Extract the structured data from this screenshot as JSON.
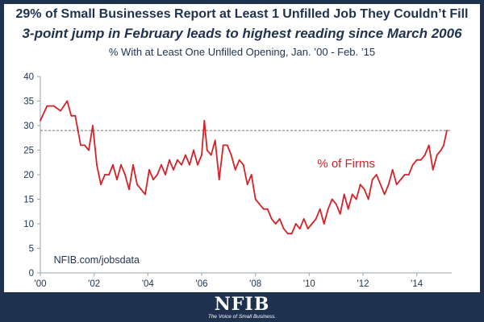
{
  "header": {
    "title": "29% of Small Businesses Report at Least 1 Unfilled Job They Couldn’t Fill",
    "subtitle": "3-point jump in February leads to highest reading since March 2006",
    "caption": "% With at Least One Unfilled Opening, Jan. ’00 - Feb. ’15"
  },
  "footer": {
    "logo_text": "NFIB",
    "tagline": "The Voice of Small Business."
  },
  "chart_data": {
    "type": "line",
    "title": "% With at Least One Unfilled Opening, Jan. ’00 - Feb. ’15",
    "series": [
      {
        "name": "% of Firms",
        "color": "#d2232a",
        "x": [
          2000.0,
          2000.25,
          2000.5,
          2000.75,
          2001.0,
          2001.15,
          2001.3,
          2001.5,
          2001.65,
          2001.8,
          2001.95,
          2002.1,
          2002.25,
          2002.4,
          2002.55,
          2002.7,
          2002.85,
          2003.0,
          2003.15,
          2003.3,
          2003.45,
          2003.6,
          2003.75,
          2003.9,
          2004.05,
          2004.2,
          2004.35,
          2004.5,
          2004.65,
          2004.8,
          2004.95,
          2005.1,
          2005.25,
          2005.4,
          2005.55,
          2005.7,
          2005.85,
          2006.0,
          2006.1,
          2006.2,
          2006.35,
          2006.5,
          2006.65,
          2006.8,
          2006.95,
          2007.1,
          2007.25,
          2007.4,
          2007.55,
          2007.7,
          2007.85,
          2008.0,
          2008.15,
          2008.3,
          2008.45,
          2008.6,
          2008.75,
          2008.9,
          2009.05,
          2009.2,
          2009.35,
          2009.5,
          2009.65,
          2009.8,
          2009.95,
          2010.1,
          2010.25,
          2010.4,
          2010.55,
          2010.7,
          2010.85,
          2011.0,
          2011.15,
          2011.3,
          2011.45,
          2011.6,
          2011.75,
          2011.9,
          2012.05,
          2012.2,
          2012.35,
          2012.5,
          2012.65,
          2012.8,
          2012.95,
          2013.1,
          2013.25,
          2013.4,
          2013.55,
          2013.7,
          2013.85,
          2014.0,
          2014.15,
          2014.3,
          2014.45,
          2014.6,
          2014.75,
          2014.9,
          2015.0,
          2015.12
        ],
        "values": [
          31,
          34,
          34,
          33,
          35,
          32,
          32,
          26,
          26,
          25,
          30,
          22,
          18,
          20,
          20,
          22,
          19,
          22,
          20,
          17,
          22,
          18,
          17,
          16,
          21,
          19,
          20,
          22,
          20,
          23,
          21,
          23,
          22,
          24,
          22,
          25,
          22,
          24,
          31,
          25,
          24,
          27,
          19,
          26,
          26,
          24,
          21,
          23,
          22,
          18,
          20,
          15,
          14,
          13,
          13,
          11,
          10,
          11,
          9,
          8,
          8,
          10,
          9,
          11,
          9,
          10,
          11,
          13,
          10,
          13,
          15,
          14,
          12,
          16,
          13,
          16,
          15,
          18,
          17,
          15,
          19,
          20,
          18,
          16,
          18,
          21,
          18,
          19,
          20,
          20,
          22,
          23,
          23,
          24,
          26,
          21,
          24,
          25,
          26,
          29
        ]
      }
    ],
    "reference_value": 29,
    "xlim": [
      2000,
      2015.3
    ],
    "ylim": [
      0,
      40
    ],
    "yticks": [
      0,
      5,
      10,
      15,
      20,
      25,
      30,
      35,
      40
    ],
    "xtick_values": [
      2000,
      2002,
      2004,
      2006,
      2008,
      2010,
      2012,
      2014
    ],
    "xtick_labels": [
      "'00",
      "'02",
      "'04",
      "'06",
      "'08",
      "'10",
      "'12",
      "'14"
    ],
    "annotations": [
      {
        "text": "% of Firms",
        "x": 2010.3,
        "y": 21.5
      },
      {
        "text": "NFIB.com/jobsdata",
        "x": 2000.5,
        "y": 2
      }
    ],
    "grid": false,
    "legend": "none"
  }
}
